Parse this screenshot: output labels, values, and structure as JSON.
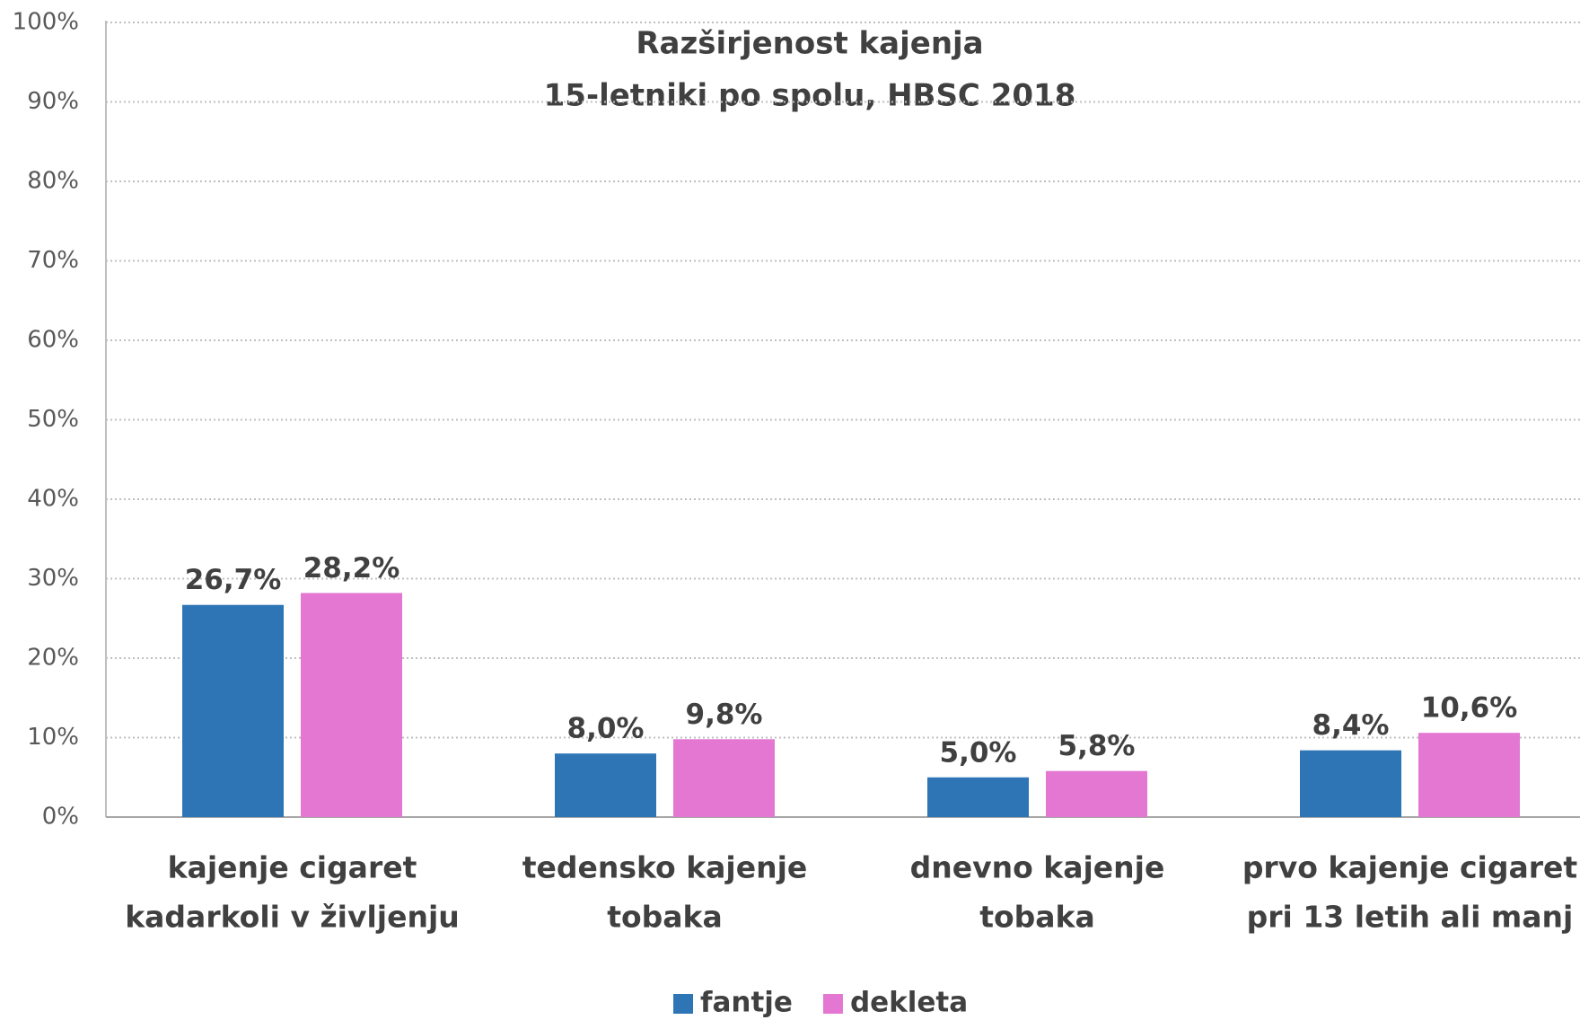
{
  "chart_data": {
    "type": "bar",
    "title": "Razširjenost kajenja",
    "subtitle": "15-letniki po spolu, HBSC 2018",
    "categories": [
      [
        "kajenje cigaret",
        "kadarkoli v življenju"
      ],
      [
        "tedensko kajenje",
        "tobaka"
      ],
      [
        "dnevno kajenje",
        "tobaka"
      ],
      [
        "prvo kajenje cigaret",
        "pri 13 letih ali manj"
      ]
    ],
    "series": [
      {
        "name": "fantje",
        "color": "#2e75b6",
        "values": [
          26.7,
          8.0,
          5.0,
          8.4
        ],
        "value_labels": [
          "26,7%",
          "8,0%",
          "5,0%",
          "8,4%"
        ]
      },
      {
        "name": "dekleta",
        "color": "#e377d1",
        "values": [
          28.2,
          9.8,
          5.8,
          10.6
        ],
        "value_labels": [
          "28,2%",
          "9,8%",
          "5,8%",
          "10,6%"
        ]
      }
    ],
    "ylim": [
      0,
      100
    ],
    "yticks": [
      {
        "value": 0,
        "label": "0%"
      },
      {
        "value": 10,
        "label": "10%"
      },
      {
        "value": 20,
        "label": "20%"
      },
      {
        "value": 30,
        "label": "30%"
      },
      {
        "value": 40,
        "label": "40%"
      },
      {
        "value": 50,
        "label": "50%"
      },
      {
        "value": 60,
        "label": "60%"
      },
      {
        "value": 70,
        "label": "70%"
      },
      {
        "value": 80,
        "label": "80%"
      },
      {
        "value": 90,
        "label": "90%"
      },
      {
        "value": 100,
        "label": "100%"
      }
    ],
    "grid": true,
    "legend": "bottom"
  }
}
